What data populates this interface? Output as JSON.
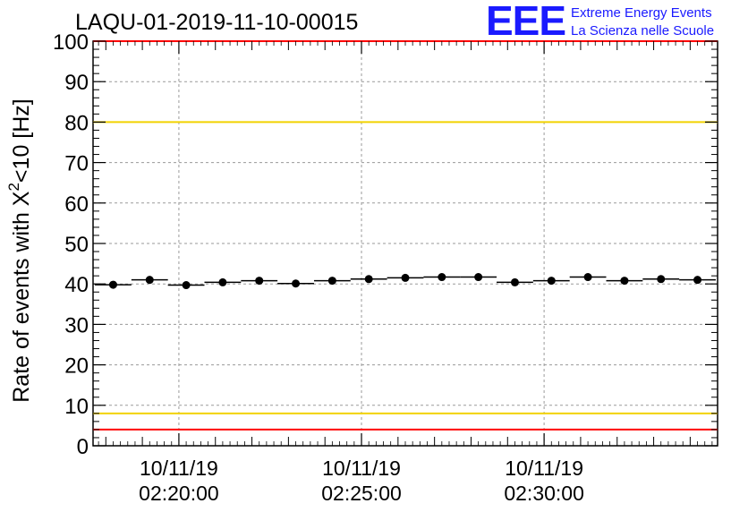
{
  "header": {
    "run_title": "LAQU-01-2019-11-10-00015",
    "logo_mark": "EEE",
    "logo_line1": "Extreme Energy Events",
    "logo_line2": "La Scienza nelle Scuole"
  },
  "chart_data": {
    "type": "scatter",
    "title": "LAQU-01-2019-11-10-00015",
    "ylabel_main": "Rate of events with X",
    "ylabel_sup": "2",
    "ylabel_tail": "<10 [Hz]",
    "xlabel": "",
    "ylim": [
      0,
      100
    ],
    "yticks": [
      0,
      10,
      20,
      30,
      40,
      50,
      60,
      70,
      80,
      90,
      100
    ],
    "xlim": [
      -2.35,
      14.75
    ],
    "xticks": [
      {
        "x": 0,
        "date": "10/11/19",
        "time": "02:20:00"
      },
      {
        "x": 5,
        "date": "10/11/19",
        "time": "02:25:00"
      },
      {
        "x": 10,
        "date": "10/11/19",
        "time": "02:30:00"
      }
    ],
    "x_unit": "minutes after 02:20:00",
    "grid": true,
    "bin_width_min": 1,
    "series": [
      {
        "name": "rate",
        "x": [
          -1.8,
          -0.8,
          0.2,
          1.2,
          2.2,
          3.2,
          4.2,
          5.2,
          6.2,
          7.2,
          8.2,
          9.2,
          10.2,
          11.2,
          12.2,
          13.2,
          14.2
        ],
        "values": [
          39.8,
          41.0,
          39.7,
          40.4,
          40.8,
          40.1,
          40.8,
          41.2,
          41.5,
          41.7,
          41.7,
          40.4,
          40.8,
          41.7,
          40.8,
          41.2,
          41.0
        ]
      }
    ],
    "reference_lines": [
      {
        "name": "upper-red-limit",
        "y": 100,
        "color": "#ff0000"
      },
      {
        "name": "upper-yellow-limit",
        "y": 80,
        "color": "#f2d200"
      },
      {
        "name": "lower-yellow-limit",
        "y": 8,
        "color": "#f2d200"
      },
      {
        "name": "lower-red-limit",
        "y": 4,
        "color": "#ff0000"
      }
    ]
  }
}
